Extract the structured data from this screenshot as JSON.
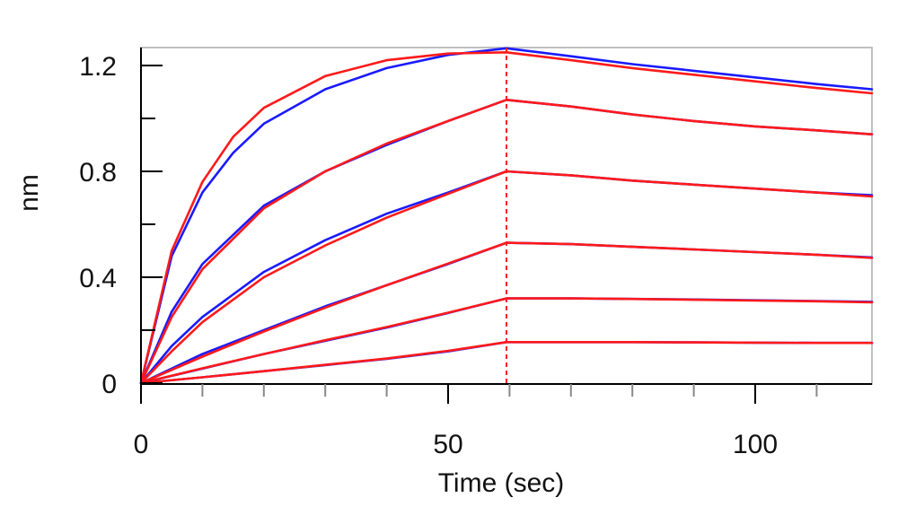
{
  "chart_data": {
    "type": "line",
    "xlabel": "Time (sec)",
    "ylabel": "nm",
    "xlim": [
      0,
      119
    ],
    "ylim": [
      0,
      1.3
    ],
    "x_ticks": [
      0,
      50,
      100
    ],
    "x_tick_labels": [
      "0",
      "50",
      "100"
    ],
    "y_ticks": [
      0,
      0.4,
      0.8,
      1.2
    ],
    "y_tick_labels": [
      "0",
      "0.4",
      "0.8",
      "1.2"
    ],
    "y_minor_ticks": [
      0.2,
      0.6,
      1.0
    ],
    "x_minor_step": 10,
    "grid": false,
    "legend": "none",
    "dissociation_start": 59.5,
    "colors": {
      "measured": "#1a1aff",
      "fit": "#ff1a1a",
      "frame": "#c0c0c0",
      "axis": "#000000"
    },
    "traces": [
      {
        "measured": {
          "x": [
            0,
            10,
            20,
            30,
            40,
            50,
            59.5,
            70,
            80,
            90,
            100,
            110,
            119
          ],
          "y": [
            0,
            0.022,
            0.045,
            0.068,
            0.092,
            0.12,
            0.155,
            0.155,
            0.155,
            0.154,
            0.153,
            0.152,
            0.152
          ]
        },
        "fit": {
          "x": [
            0,
            10,
            20,
            30,
            40,
            50,
            59.5,
            70,
            80,
            90,
            100,
            110,
            119
          ],
          "y": [
            0,
            0.022,
            0.045,
            0.069,
            0.093,
            0.122,
            0.155,
            0.155,
            0.155,
            0.154,
            0.153,
            0.152,
            0.152
          ]
        }
      },
      {
        "measured": {
          "x": [
            0,
            10,
            20,
            30,
            40,
            50,
            59.5,
            70,
            80,
            90,
            100,
            110,
            119
          ],
          "y": [
            0,
            0.055,
            0.11,
            0.16,
            0.21,
            0.265,
            0.32,
            0.32,
            0.318,
            0.316,
            0.313,
            0.31,
            0.307
          ]
        },
        "fit": {
          "x": [
            0,
            10,
            20,
            30,
            40,
            50,
            59.5,
            70,
            80,
            90,
            100,
            110,
            119
          ],
          "y": [
            0,
            0.056,
            0.11,
            0.162,
            0.212,
            0.266,
            0.32,
            0.32,
            0.318,
            0.315,
            0.312,
            0.309,
            0.305
          ]
        }
      },
      {
        "measured": {
          "x": [
            0,
            10,
            20,
            30,
            40,
            50,
            59.5,
            70,
            80,
            90,
            100,
            110,
            119
          ],
          "y": [
            0,
            0.11,
            0.2,
            0.29,
            0.37,
            0.45,
            0.53,
            0.525,
            0.515,
            0.505,
            0.495,
            0.485,
            0.475
          ]
        },
        "fit": {
          "x": [
            0,
            10,
            20,
            30,
            40,
            50,
            59.5,
            70,
            80,
            90,
            100,
            110,
            119
          ],
          "y": [
            0,
            0.1,
            0.195,
            0.285,
            0.37,
            0.452,
            0.53,
            0.525,
            0.515,
            0.505,
            0.495,
            0.485,
            0.473
          ]
        }
      },
      {
        "measured": {
          "x": [
            0,
            5,
            10,
            20,
            30,
            40,
            50,
            59.5,
            70,
            80,
            90,
            100,
            110,
            119
          ],
          "y": [
            0,
            0.14,
            0.25,
            0.42,
            0.54,
            0.64,
            0.72,
            0.8,
            0.785,
            0.765,
            0.75,
            0.735,
            0.72,
            0.71
          ]
        },
        "fit": {
          "x": [
            0,
            5,
            10,
            20,
            30,
            40,
            50,
            59.5,
            70,
            80,
            90,
            100,
            110,
            119
          ],
          "y": [
            0,
            0.12,
            0.23,
            0.4,
            0.52,
            0.625,
            0.715,
            0.8,
            0.785,
            0.765,
            0.75,
            0.735,
            0.72,
            0.705
          ]
        }
      },
      {
        "measured": {
          "x": [
            0,
            5,
            10,
            20,
            30,
            40,
            50,
            59.5,
            70,
            80,
            90,
            100,
            110,
            119
          ],
          "y": [
            0,
            0.27,
            0.45,
            0.67,
            0.8,
            0.9,
            0.99,
            1.07,
            1.045,
            1.015,
            0.99,
            0.97,
            0.955,
            0.94
          ]
        },
        "fit": {
          "x": [
            0,
            5,
            10,
            20,
            30,
            40,
            50,
            59.5,
            70,
            80,
            90,
            100,
            110,
            119
          ],
          "y": [
            0,
            0.25,
            0.43,
            0.66,
            0.8,
            0.905,
            0.99,
            1.07,
            1.045,
            1.015,
            0.99,
            0.97,
            0.955,
            0.94
          ]
        }
      },
      {
        "measured": {
          "x": [
            0,
            5,
            10,
            15,
            20,
            30,
            40,
            50,
            59.5,
            70,
            80,
            90,
            100,
            110,
            119
          ],
          "y": [
            0,
            0.48,
            0.72,
            0.87,
            0.98,
            1.11,
            1.19,
            1.24,
            1.265,
            1.235,
            1.205,
            1.18,
            1.155,
            1.13,
            1.11
          ]
        },
        "fit": {
          "x": [
            0,
            5,
            10,
            15,
            20,
            30,
            40,
            50,
            59.5,
            70,
            80,
            90,
            100,
            110,
            119
          ],
          "y": [
            0,
            0.5,
            0.76,
            0.93,
            1.04,
            1.16,
            1.22,
            1.245,
            1.25,
            1.22,
            1.19,
            1.165,
            1.14,
            1.115,
            1.095
          ]
        }
      }
    ]
  }
}
